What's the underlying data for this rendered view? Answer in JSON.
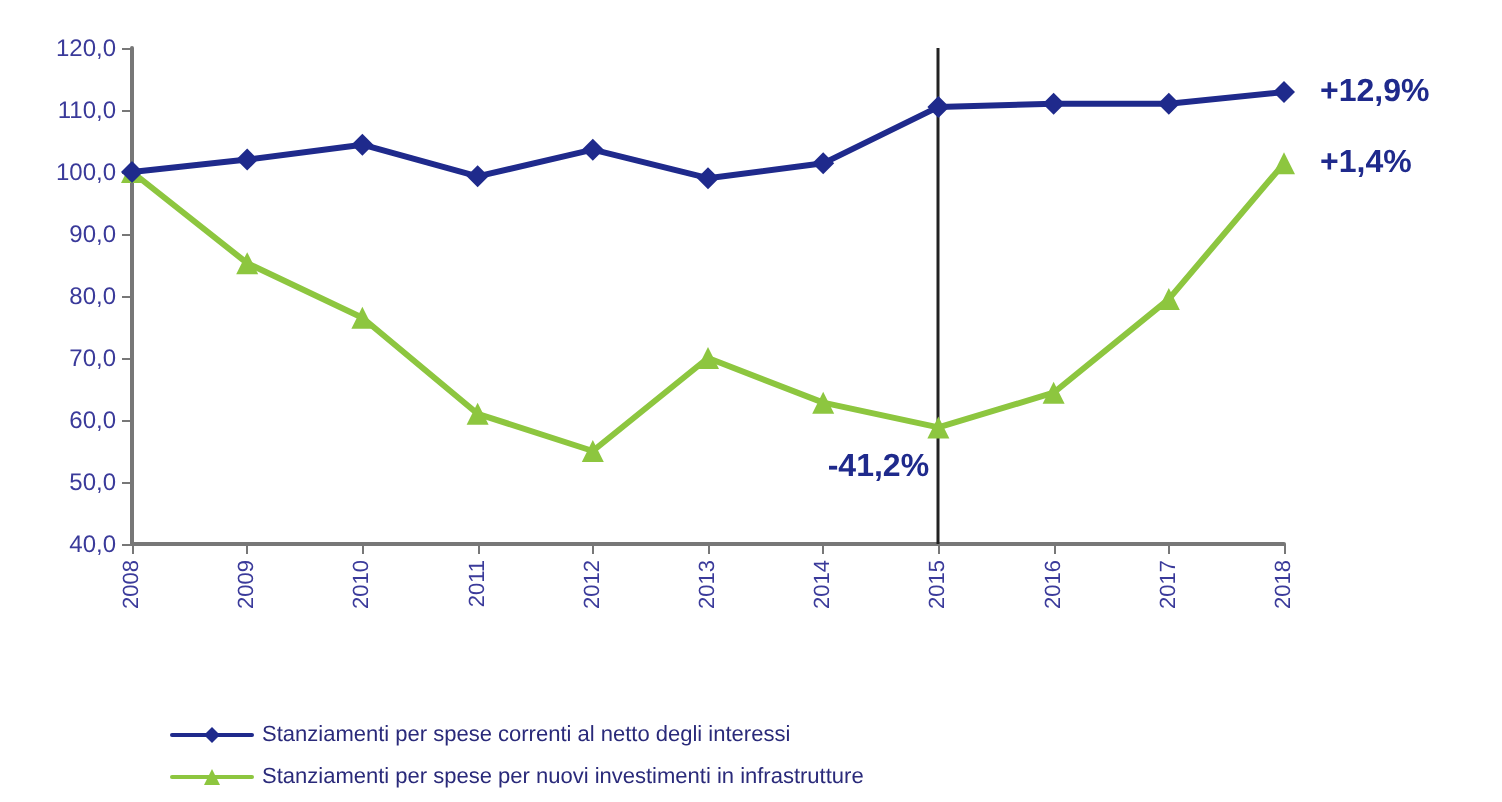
{
  "chart_data": {
    "type": "line",
    "categories": [
      "2008",
      "2009",
      "2010",
      "2011",
      "2012",
      "2013",
      "2014",
      "2015",
      "2016",
      "2017",
      "2018"
    ],
    "series": [
      {
        "name": "Stanziamenti per spese correnti al netto degli interessi",
        "color": "#1f2a8c",
        "marker": "diamond",
        "values": [
          100,
          102,
          104.4,
          99.3,
          103.6,
          99,
          101.4,
          110.5,
          111,
          111,
          112.9
        ]
      },
      {
        "name": "Stanziamenti per spese per nuovi investimenti in infrastrutture",
        "color": "#8dc63f",
        "marker": "triangle",
        "values": [
          100,
          85.3,
          76.5,
          61,
          55,
          70,
          62.8,
          58.8,
          64.4,
          79.5,
          101.4
        ]
      }
    ],
    "ylim": [
      40,
      120
    ],
    "yticks": [
      {
        "value": 40,
        "label": "40,0"
      },
      {
        "value": 50,
        "label": "50,0"
      },
      {
        "value": 60,
        "label": "60,0"
      },
      {
        "value": 70,
        "label": "70,0"
      },
      {
        "value": 80,
        "label": "80,0"
      },
      {
        "value": 90,
        "label": "90,0"
      },
      {
        "value": 100,
        "label": "100,0"
      },
      {
        "value": 110,
        "label": "110,0"
      },
      {
        "value": 120,
        "label": "120,0"
      }
    ],
    "ref_lines": [
      {
        "axis": "x",
        "value": "2015",
        "color": "#222222"
      }
    ],
    "annotations": [
      {
        "text": "+12,9%",
        "x": "2018",
        "y": 112.9
      },
      {
        "text": "+1,4%",
        "x": "2018",
        "y": 101.4
      },
      {
        "text": "-41,2%",
        "x": "2015",
        "y": 58.8
      }
    ],
    "grid": false,
    "legend": "bottom",
    "line_style": "solid"
  }
}
